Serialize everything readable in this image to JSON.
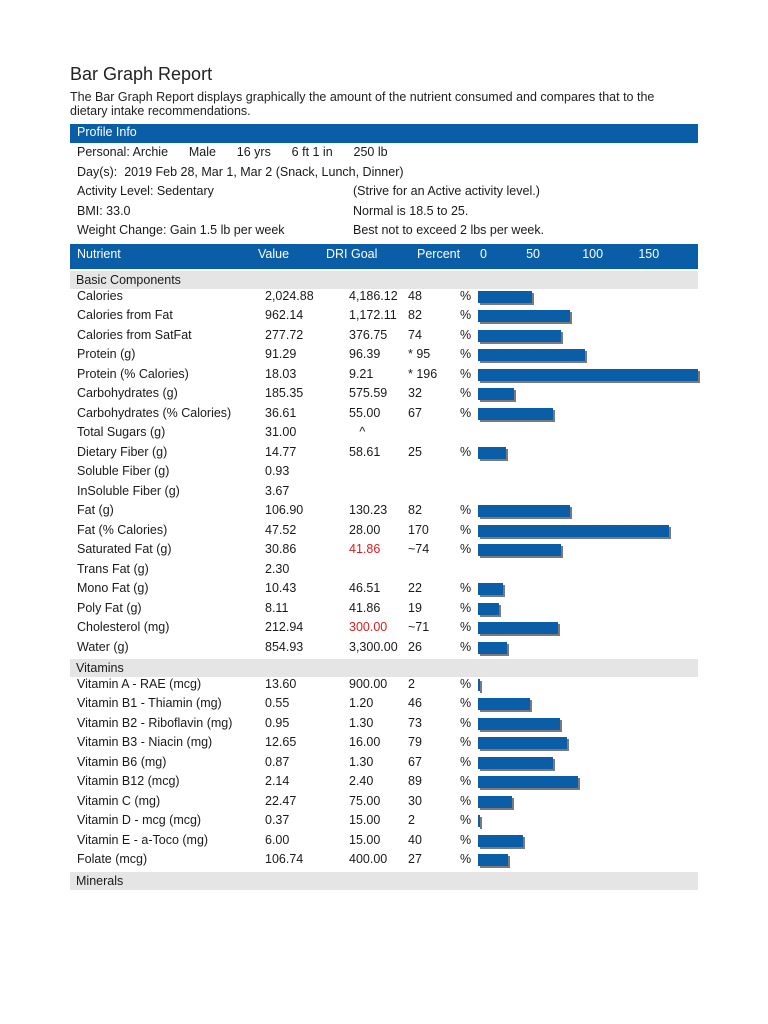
{
  "title": "Bar Graph Report",
  "intro": "The Bar Graph Report displays graphically the amount of the nutrient consumed and compares that to the dietary intake recommendations.",
  "profile": {
    "header": "Profile Info",
    "rows": [
      {
        "left": "Personal: Archie      Male      16 yrs      6 ft 1 in      250 lb",
        "right": ""
      },
      {
        "left": "Day(s):  2019 Feb 28, Mar 1, Mar 2 (Snack, Lunch, Dinner)",
        "right": ""
      },
      {
        "left": "Activity Level: Sedentary",
        "right": "(Strive for an Active activity level.)"
      },
      {
        "left": "BMI: 33.0",
        "right": "Normal is 18.5 to 25."
      },
      {
        "left": "Weight Change: Gain 1.5 lb per week",
        "right": "Best not to exceed 2 lbs per week."
      }
    ]
  },
  "table_header": {
    "nutrient": "Nutrient",
    "value": "Value",
    "dri_goal": "DRI Goal",
    "percent": "Percent",
    "scale": [
      "0",
      "50",
      "100",
      "150"
    ]
  },
  "sections": [
    {
      "name": "Basic Components",
      "rows": [
        {
          "name": "Calories",
          "value": "2,024.88",
          "goal": "4,186.12",
          "pct": "48",
          "sign": "%",
          "bar": 48
        },
        {
          "name": "Calories from Fat",
          "value": "962.14",
          "goal": "1,172.11",
          "pct": "82",
          "sign": "%",
          "bar": 82
        },
        {
          "name": "Calories from SatFat",
          "value": "277.72",
          "goal": "376.75",
          "pct": "74",
          "sign": "%",
          "bar": 74
        },
        {
          "name": "Protein (g)",
          "value": "91.29",
          "goal": "96.39",
          "pct": "* 95",
          "sign": "%",
          "bar": 95
        },
        {
          "name": "Protein (% Calories)",
          "value": "18.03",
          "goal": "9.21",
          "pct": "* 196",
          "sign": "%",
          "bar": 196
        },
        {
          "name": "Carbohydrates (g)",
          "value": "185.35",
          "goal": "575.59",
          "pct": "32",
          "sign": "%",
          "bar": 32
        },
        {
          "name": "Carbohydrates (% Calories)",
          "value": "36.61",
          "goal": "55.00",
          "pct": "67",
          "sign": "%",
          "bar": 67
        },
        {
          "name": "Total Sugars (g)",
          "value": "31.00",
          "goal": "   ^",
          "pct": "",
          "sign": "",
          "bar": null
        },
        {
          "name": "Dietary Fiber (g)",
          "value": "14.77",
          "goal": "58.61",
          "pct": "25",
          "sign": "%",
          "bar": 25
        },
        {
          "name": "Soluble Fiber (g)",
          "value": "0.93",
          "goal": "",
          "pct": "",
          "sign": "",
          "bar": null
        },
        {
          "name": "InSoluble Fiber (g)",
          "value": "3.67",
          "goal": "",
          "pct": "",
          "sign": "",
          "bar": null
        },
        {
          "name": "Fat (g)",
          "value": "106.90",
          "goal": "130.23",
          "pct": "82",
          "sign": "%",
          "bar": 82
        },
        {
          "name": "Fat (% Calories)",
          "value": "47.52",
          "goal": "28.00",
          "pct": "170",
          "sign": "%",
          "bar": 170
        },
        {
          "name": "Saturated Fat (g)",
          "value": "30.86",
          "goal": "41.86",
          "goal_warn": true,
          "pct": "~74",
          "sign": "%",
          "bar": 74
        },
        {
          "name": "Trans Fat (g)",
          "value": "2.30",
          "goal": "",
          "pct": "",
          "sign": "",
          "bar": null
        },
        {
          "name": "Mono Fat (g)",
          "value": "10.43",
          "goal": "46.51",
          "pct": "22",
          "sign": "%",
          "bar": 22
        },
        {
          "name": "Poly Fat (g)",
          "value": "8.11",
          "goal": "41.86",
          "pct": "19",
          "sign": "%",
          "bar": 19
        },
        {
          "name": "Cholesterol (mg)",
          "value": "212.94",
          "goal": "300.00",
          "goal_warn": true,
          "pct": "~71",
          "sign": "%",
          "bar": 71
        },
        {
          "name": "Water (g)",
          "value": "854.93",
          "goal": "3,300.00",
          "pct": "26",
          "sign": "%",
          "bar": 26
        }
      ]
    },
    {
      "name": "Vitamins",
      "rows": [
        {
          "name": "Vitamin A - RAE (mcg)",
          "value": "13.60",
          "goal": "900.00",
          "pct": "2",
          "sign": "%",
          "bar": 2
        },
        {
          "name": "Vitamin B1 - Thiamin (mg)",
          "value": "0.55",
          "goal": "1.20",
          "pct": "46",
          "sign": "%",
          "bar": 46
        },
        {
          "name": "Vitamin B2 - Riboflavin (mg)",
          "value": "0.95",
          "goal": "1.30",
          "pct": "73",
          "sign": "%",
          "bar": 73
        },
        {
          "name": "Vitamin B3 - Niacin (mg)",
          "value": "12.65",
          "goal": "16.00",
          "pct": "79",
          "sign": "%",
          "bar": 79
        },
        {
          "name": "Vitamin B6 (mg)",
          "value": "0.87",
          "goal": "1.30",
          "pct": "67",
          "sign": "%",
          "bar": 67
        },
        {
          "name": "Vitamin B12 (mcg)",
          "value": "2.14",
          "goal": "2.40",
          "pct": "89",
          "sign": "%",
          "bar": 89
        },
        {
          "name": "Vitamin C (mg)",
          "value": "22.47",
          "goal": "75.00",
          "pct": "30",
          "sign": "%",
          "bar": 30
        },
        {
          "name": "Vitamin D - mcg (mcg)",
          "value": "0.37",
          "goal": "15.00",
          "pct": "2",
          "sign": "%",
          "bar": 2
        },
        {
          "name": "Vitamin E - a-Toco (mg)",
          "value": "6.00",
          "goal": "15.00",
          "pct": "40",
          "sign": "%",
          "bar": 40
        },
        {
          "name": "Folate (mcg)",
          "value": "106.74",
          "goal": "400.00",
          "pct": "27",
          "sign": "%",
          "bar": 27
        }
      ]
    },
    {
      "name": "Minerals",
      "rows": []
    }
  ],
  "colors": {
    "bar": "#0a5ea8",
    "header": "#0a5ea8",
    "warn": "#d42020",
    "section": "#e5e5e5"
  }
}
